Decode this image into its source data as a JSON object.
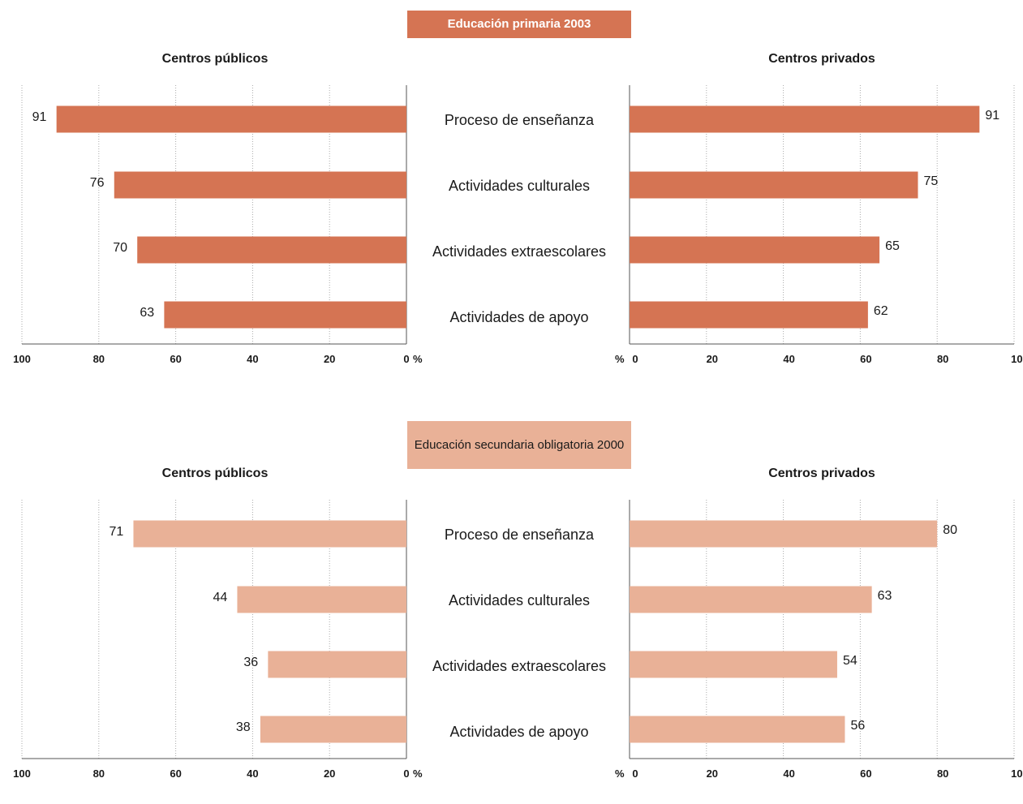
{
  "colors": {
    "primaria": "#d57453",
    "secundaria": "#e9b197",
    "grid": "#aaaaaa",
    "axis": "#555555"
  },
  "charts": [
    {
      "title": "Educación primaria 2003",
      "left_title": "Centros públicos",
      "right_title": "Centros privados",
      "categories": [
        "Proceso de enseñanza",
        "Actividades culturales",
        "Actividades extraescolares",
        "Actividades de apoyo"
      ]
    },
    {
      "title": "Educación secundaria obligatoria 2000",
      "left_title": "Centros públicos",
      "right_title": "Centros privados",
      "categories": [
        "Proceso de enseñanza",
        "Actividades culturales",
        "Actividades extraescolares",
        "Actividades de apoyo"
      ]
    }
  ],
  "axis": {
    "ticks": [
      "0",
      "20",
      "40",
      "60",
      "80",
      "100"
    ],
    "unit": "%"
  },
  "chart_data": [
    {
      "type": "bar",
      "title": "Educación primaria 2003",
      "categories": [
        "Proceso de enseñanza",
        "Actividades culturales",
        "Actividades extraescolares",
        "Actividades de apoyo"
      ],
      "series": [
        {
          "name": "Centros públicos",
          "values": [
            91,
            76,
            70,
            63
          ]
        },
        {
          "name": "Centros privados",
          "values": [
            91,
            75,
            65,
            62
          ]
        }
      ],
      "xlim": [
        0,
        100
      ]
    },
    {
      "type": "bar",
      "title": "Educación secundaria obligatoria 2000",
      "categories": [
        "Proceso de enseñanza",
        "Actividades culturales",
        "Actividades extraescolares",
        "Actividades de apoyo"
      ],
      "series": [
        {
          "name": "Centros públicos",
          "values": [
            71,
            44,
            36,
            38
          ]
        },
        {
          "name": "Centros privados",
          "values": [
            80,
            63,
            54,
            56
          ]
        }
      ],
      "xlim": [
        0,
        100
      ]
    }
  ]
}
